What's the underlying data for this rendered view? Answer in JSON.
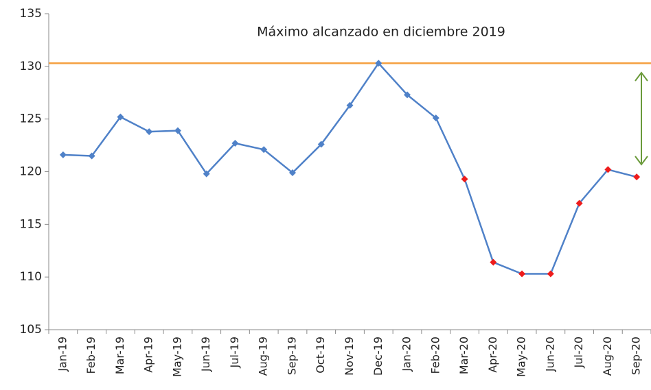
{
  "chart_data": {
    "type": "line",
    "annotation": "Máximo alcanzado en diciembre 2019",
    "categories": [
      "Jan-19",
      "Feb-19",
      "Mar-19",
      "Apr-19",
      "May-19",
      "Jun-19",
      "Jul-19",
      "Aug-19",
      "Sep-19",
      "Oct-19",
      "Nov-19",
      "Dec-19",
      "Jan-20",
      "Feb-20",
      "Mar-20",
      "Apr-20",
      "May-20",
      "Jun-20",
      "Jul-20",
      "Aug-20",
      "Sep-20"
    ],
    "series": [
      {
        "color": "#4f81c8",
        "values": [
          121.6,
          121.5,
          125.2,
          123.8,
          123.9,
          119.8,
          122.7,
          122.1,
          119.9,
          122.6,
          126.3,
          130.3,
          127.3,
          125.1,
          119.3,
          111.4,
          110.3,
          110.3,
          117.0,
          120.2,
          119.5
        ],
        "marker_colors": [
          "#4f81c8",
          "#4f81c8",
          "#4f81c8",
          "#4f81c8",
          "#4f81c8",
          "#4f81c8",
          "#4f81c8",
          "#4f81c8",
          "#4f81c8",
          "#4f81c8",
          "#4f81c8",
          "#4f81c8",
          "#4f81c8",
          "#4f81c8",
          "#ee1c1c",
          "#ee1c1c",
          "#ee1c1c",
          "#ee1c1c",
          "#ee1c1c",
          "#ee1c1c",
          "#ee1c1c"
        ]
      }
    ],
    "reference_line": {
      "value": 130.3,
      "color": "#f5a040"
    },
    "ylim": [
      105,
      135
    ],
    "yticks": [
      105,
      110,
      115,
      120,
      125,
      130,
      135
    ]
  }
}
